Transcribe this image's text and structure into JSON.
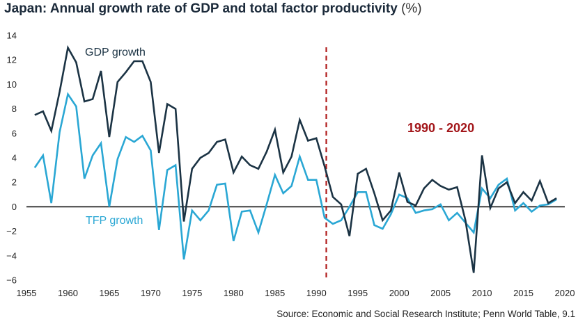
{
  "chart_data": {
    "type": "line",
    "title": "Japan: Annual growth rate of GDP and total factor productivity",
    "title_unit": "(%)",
    "xlim": [
      1955,
      2020
    ],
    "ylim": [
      -6,
      14
    ],
    "x_ticks": [
      1955,
      1960,
      1965,
      1970,
      1975,
      1980,
      1985,
      1990,
      1995,
      2000,
      2005,
      2010,
      2015,
      2020
    ],
    "y_ticks": [
      -6,
      -4,
      -2,
      0,
      2,
      4,
      6,
      8,
      10,
      12,
      14
    ],
    "x": [
      1956,
      1957,
      1958,
      1959,
      1960,
      1961,
      1962,
      1963,
      1964,
      1965,
      1966,
      1967,
      1968,
      1969,
      1970,
      1971,
      1972,
      1973,
      1974,
      1975,
      1976,
      1977,
      1978,
      1979,
      1980,
      1981,
      1982,
      1983,
      1984,
      1985,
      1986,
      1987,
      1988,
      1989,
      1990,
      1991,
      1992,
      1993,
      1994,
      1995,
      1996,
      1997,
      1998,
      1999,
      2000,
      2001,
      2002,
      2003,
      2004,
      2005,
      2006,
      2007,
      2008,
      2009,
      2010,
      2011,
      2012,
      2013,
      2014,
      2015,
      2016,
      2017,
      2018,
      2019
    ],
    "series": [
      {
        "name": "GDP growth",
        "color": "#1b3344",
        "values": [
          7.5,
          7.8,
          6.2,
          9.4,
          13.0,
          11.8,
          8.6,
          8.8,
          11.1,
          5.7,
          10.2,
          11.0,
          11.9,
          11.9,
          10.2,
          4.4,
          8.4,
          8.0,
          -1.2,
          3.1,
          4.0,
          4.4,
          5.3,
          5.5,
          2.8,
          4.1,
          3.4,
          3.1,
          4.5,
          6.3,
          2.8,
          4.1,
          7.1,
          5.4,
          5.6,
          3.3,
          0.8,
          0.2,
          -2.4,
          2.7,
          3.1,
          1.1,
          -1.1,
          -0.3,
          2.8,
          0.4,
          0.1,
          1.5,
          2.2,
          1.7,
          1.4,
          1.6,
          -1.1,
          -5.4,
          4.2,
          -0.1,
          1.5,
          2.0,
          0.3,
          1.2,
          0.5,
          2.1,
          0.3,
          0.7
        ]
      },
      {
        "name": "TFP growth",
        "color": "#2aa7d4",
        "values": [
          3.2,
          4.2,
          0.3,
          6.1,
          9.2,
          8.2,
          2.3,
          4.2,
          5.2,
          0.0,
          3.9,
          5.7,
          5.3,
          5.8,
          4.6,
          -1.9,
          3.0,
          3.4,
          -4.3,
          -0.3,
          -1.1,
          -0.3,
          1.8,
          1.9,
          -2.8,
          -0.4,
          -0.3,
          -2.1,
          0.2,
          2.6,
          1.1,
          1.7,
          4.1,
          2.2,
          2.2,
          -0.9,
          -1.4,
          -1.1,
          0.0,
          1.2,
          1.2,
          -1.5,
          -1.8,
          -0.6,
          1.0,
          0.7,
          -0.5,
          -0.3,
          -0.2,
          0.2,
          -1.1,
          -0.5,
          -1.3,
          -2.1,
          1.5,
          0.7,
          1.8,
          2.3,
          -0.3,
          0.3,
          -0.4,
          0.1,
          0.2,
          0.6
        ]
      }
    ],
    "annotations": {
      "gdp_label": "GDP growth",
      "tfp_label": "TFP growth",
      "period_label": "1990 - 2020",
      "divider_x": 1991.2
    },
    "source": "Source: Economic and Social Research Institute; Penn World Table, 9.1"
  }
}
